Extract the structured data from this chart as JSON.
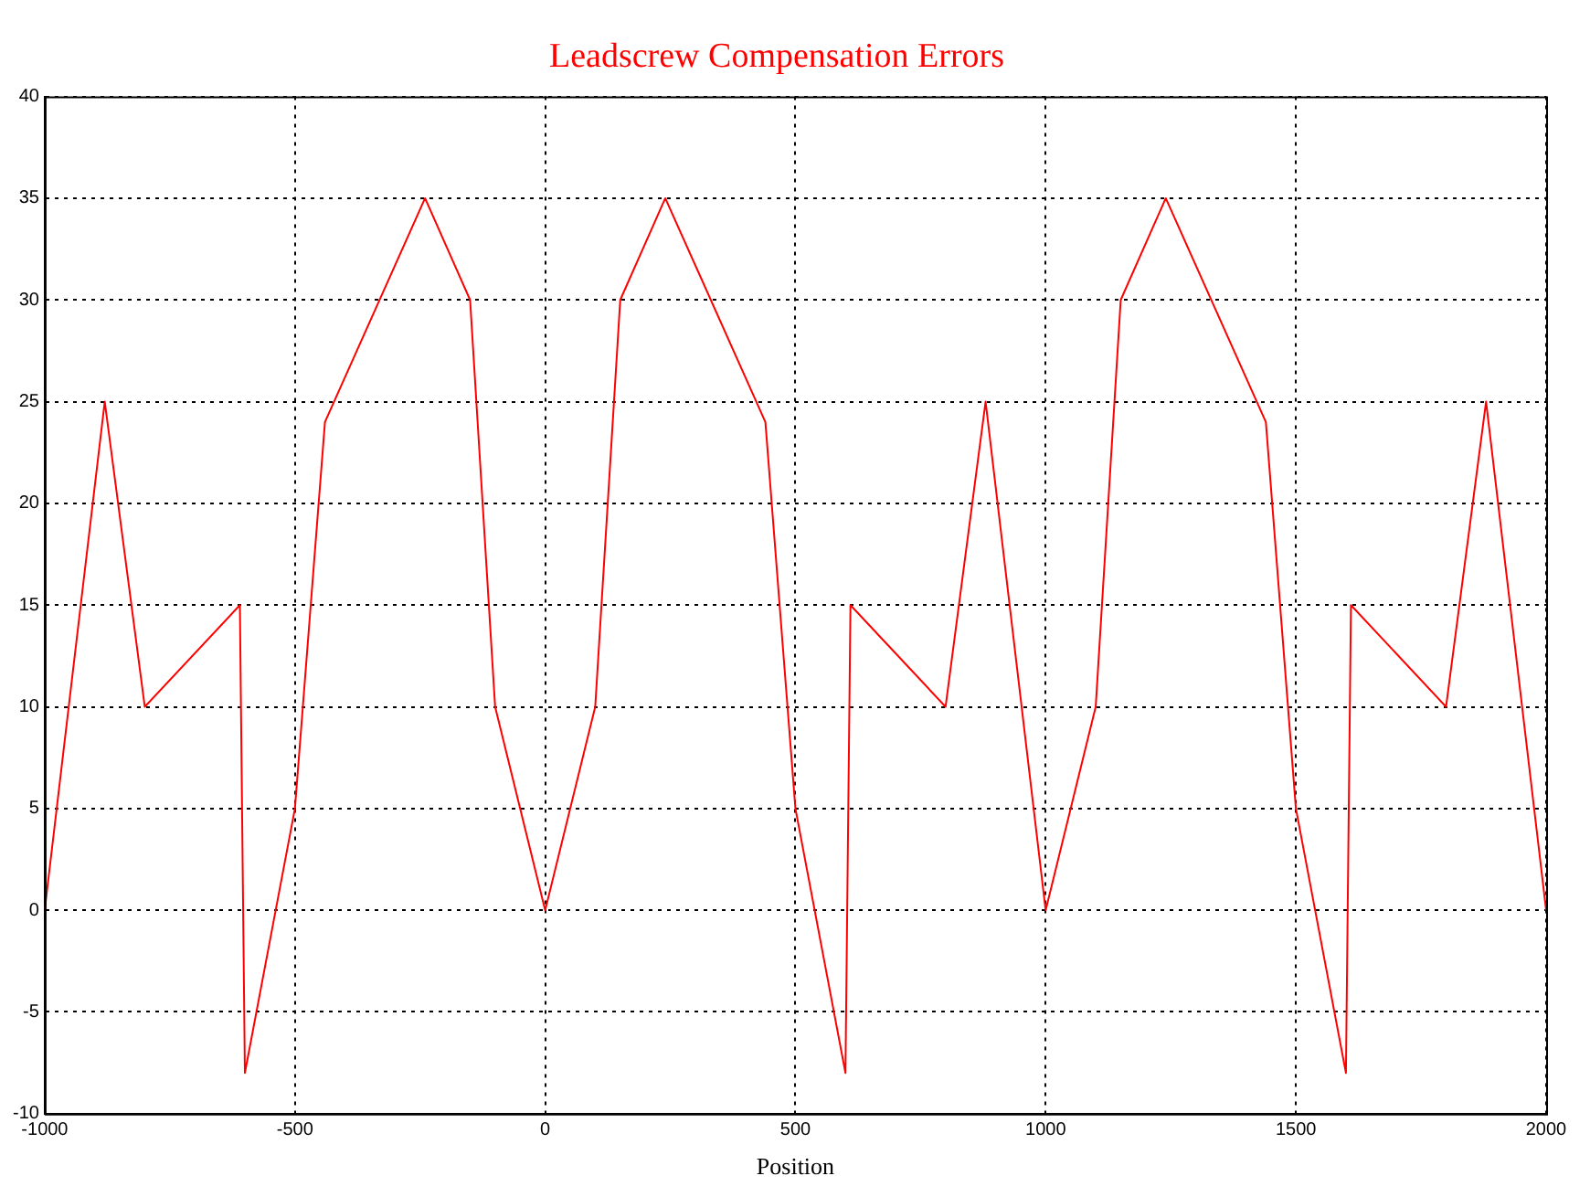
{
  "chart_data": {
    "type": "line",
    "title": "Leadscrew Compensation Errors",
    "xlabel": "Position",
    "x": [
      -1000,
      -880,
      -800,
      -610,
      -600,
      -500,
      -440,
      -240,
      -150,
      -100,
      0,
      100,
      150,
      240,
      440,
      500,
      600,
      610,
      800,
      880,
      1000,
      1100,
      1150,
      1240,
      1440,
      1500,
      1600,
      1610,
      1800,
      1880,
      2000
    ],
    "series": [
      {
        "color": "#ff0000",
        "values": [
          0,
          25,
          10,
          15,
          -8,
          5,
          24,
          35,
          30,
          10,
          0,
          10,
          30,
          35,
          24,
          5,
          -8,
          15,
          10,
          25,
          0,
          10,
          30,
          35,
          24,
          5,
          -8,
          15,
          10,
          25,
          0
        ]
      }
    ],
    "xlim": [
      -1000,
      2000
    ],
    "xticks": [
      -1000,
      -500,
      0,
      500,
      1000,
      1500,
      2000
    ],
    "ylim": [
      -10,
      40
    ],
    "yticks": [
      -10,
      -5,
      0,
      5,
      10,
      15,
      20,
      25,
      30,
      35,
      40
    ],
    "grid": true,
    "legend": false,
    "marker": "none",
    "line_style": "solid"
  }
}
